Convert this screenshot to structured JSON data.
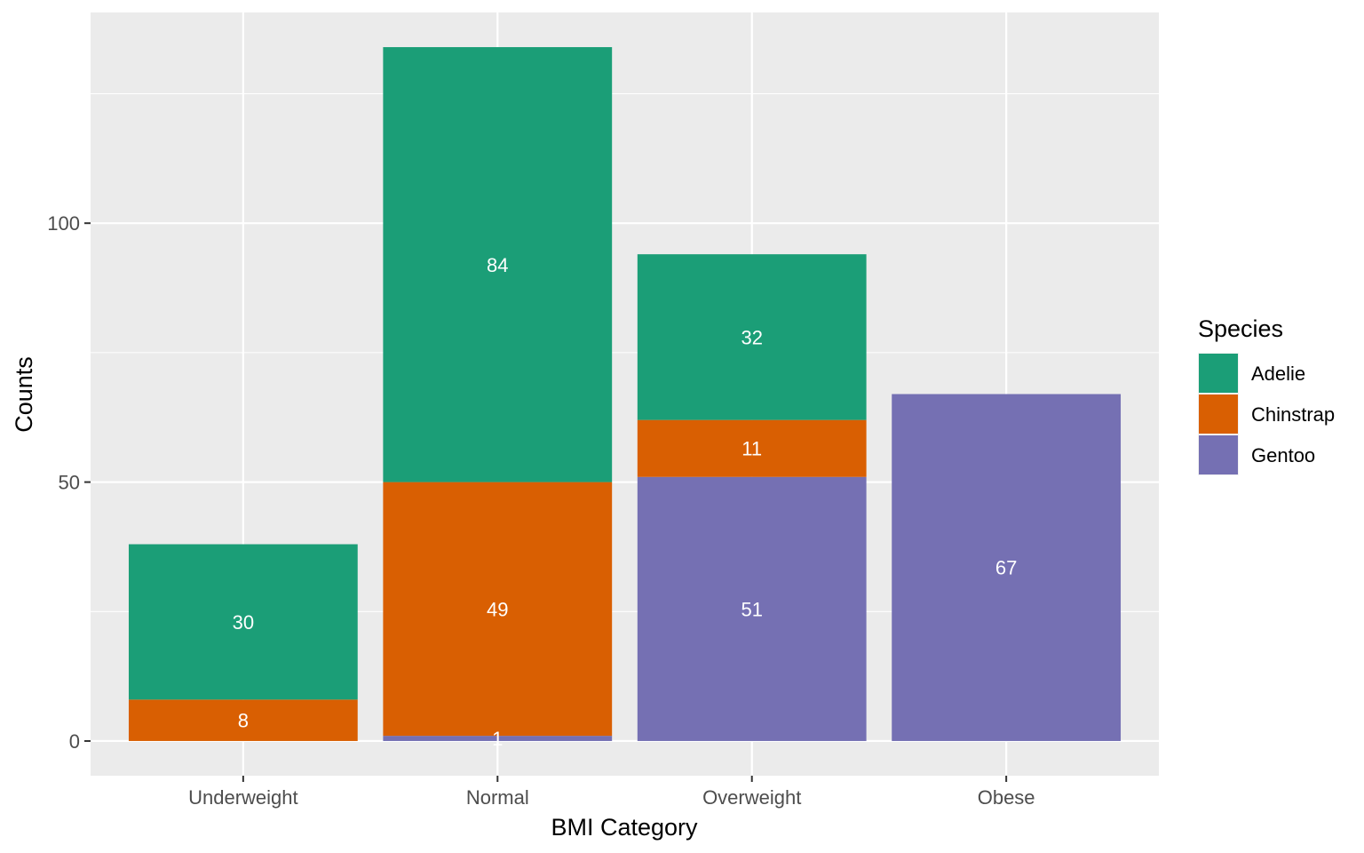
{
  "chart_data": {
    "type": "bar",
    "stacked": true,
    "title": "",
    "xlabel": "BMI Category",
    "ylabel": "Counts",
    "categories": [
      "Underweight",
      "Normal",
      "Overweight",
      "Obese"
    ],
    "stack_order_bottom_to_top": [
      "Gentoo",
      "Chinstrap",
      "Adelie"
    ],
    "series": [
      {
        "name": "Adelie",
        "color": "#1B9E77",
        "values": [
          30,
          84,
          32,
          0
        ]
      },
      {
        "name": "Chinstrap",
        "color": "#D95F02",
        "values": [
          8,
          49,
          11,
          0
        ]
      },
      {
        "name": "Gentoo",
        "color": "#7570B3",
        "values": [
          0,
          1,
          51,
          67
        ]
      }
    ],
    "yticks": [
      0,
      50,
      100
    ],
    "ylim": [
      -6.7,
      140.7
    ],
    "grid": true,
    "legend": {
      "title": "Species",
      "position": "right",
      "entries": [
        "Adelie",
        "Chinstrap",
        "Gentoo"
      ]
    },
    "panel_background": "#EBEBEB",
    "grid_color": "#FFFFFF"
  }
}
